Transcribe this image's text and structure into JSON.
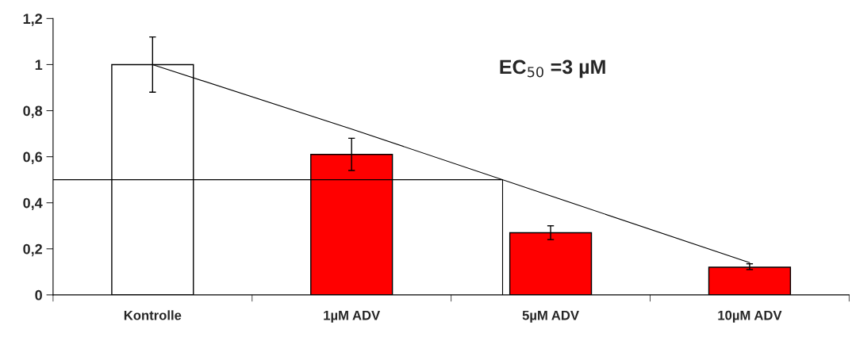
{
  "chart_data": {
    "type": "bar",
    "categories": [
      "Kontrolle",
      "1µM ADV",
      "5µM ADV",
      "10µM ADV"
    ],
    "series": [
      {
        "colors": [
          "#ffffff",
          "#ff0000",
          "#ff0000",
          "#ff0000"
        ],
        "values": [
          1.0,
          0.61,
          0.27,
          0.12
        ],
        "errors": [
          [
            0.88,
            1.12
          ],
          [
            0.54,
            0.68
          ],
          [
            0.24,
            0.3
          ],
          [
            0.11,
            0.135
          ]
        ]
      },
      {
        "type": "line",
        "color": "#000000",
        "values": [
          1.0,
          0.72,
          0.43,
          0.14
        ]
      }
    ],
    "ref_lines": [
      {
        "axis": "y",
        "value": 0.5,
        "color": "#000000"
      }
    ],
    "ylim": [
      0,
      1.2
    ],
    "yticks": [
      0,
      {
        "value": 0.2,
        "label": "0,2"
      },
      {
        "value": 0.4,
        "label": "0,4"
      },
      {
        "value": 0.6,
        "label": "0,6"
      },
      {
        "value": 0.8,
        "label": "0,8"
      },
      1,
      {
        "value": 1.2,
        "label": "1,2"
      }
    ],
    "annotations": [
      "EC$_{50}$ =3 µM"
    ],
    "grid": false,
    "legend": false
  }
}
